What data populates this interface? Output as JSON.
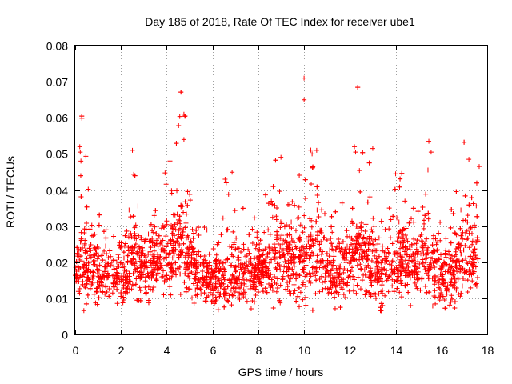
{
  "chart_data": {
    "type": "scatter",
    "title": "Day 185 of 2018, Rate Of TEC Index for receiver ube1",
    "xlabel": "GPS time / hours",
    "ylabel": "ROTI / TECUs",
    "xlim": [
      0,
      18
    ],
    "ylim": [
      0,
      0.08
    ],
    "xticks": [
      "0",
      "2",
      "4",
      "6",
      "8",
      "10",
      "12",
      "14",
      "16",
      "18"
    ],
    "yticks": [
      "0",
      "0.01",
      "0.02",
      "0.03",
      "0.04",
      "0.05",
      "0.06",
      "0.07",
      "0.08"
    ],
    "grid": true,
    "marker": "+",
    "color": "#ff0000",
    "envelope": [
      {
        "x": 0.0,
        "base": 0.018,
        "spread": 0.007,
        "burst": 0.01
      },
      {
        "x": 0.3,
        "base": 0.02,
        "spread": 0.008,
        "burst": 0.03
      },
      {
        "x": 0.7,
        "base": 0.018,
        "spread": 0.008,
        "burst": 0.022
      },
      {
        "x": 1.2,
        "base": 0.016,
        "spread": 0.007,
        "burst": 0.012
      },
      {
        "x": 1.7,
        "base": 0.017,
        "spread": 0.006,
        "burst": 0.01
      },
      {
        "x": 2.1,
        "base": 0.016,
        "spread": 0.008,
        "burst": 0.016
      },
      {
        "x": 2.5,
        "base": 0.02,
        "spread": 0.009,
        "burst": 0.022
      },
      {
        "x": 3.0,
        "base": 0.018,
        "spread": 0.007,
        "burst": 0.01
      },
      {
        "x": 3.5,
        "base": 0.02,
        "spread": 0.008,
        "burst": 0.016
      },
      {
        "x": 4.0,
        "base": 0.022,
        "spread": 0.009,
        "burst": 0.02
      },
      {
        "x": 4.5,
        "base": 0.026,
        "spread": 0.01,
        "burst": 0.024
      },
      {
        "x": 4.8,
        "base": 0.024,
        "spread": 0.01,
        "burst": 0.03
      },
      {
        "x": 5.2,
        "base": 0.018,
        "spread": 0.007,
        "burst": 0.012
      },
      {
        "x": 5.8,
        "base": 0.015,
        "spread": 0.006,
        "burst": 0.008
      },
      {
        "x": 6.3,
        "base": 0.014,
        "spread": 0.006,
        "burst": 0.01
      },
      {
        "x": 6.7,
        "base": 0.016,
        "spread": 0.007,
        "burst": 0.024
      },
      {
        "x": 7.2,
        "base": 0.015,
        "spread": 0.006,
        "burst": 0.01
      },
      {
        "x": 7.8,
        "base": 0.017,
        "spread": 0.007,
        "burst": 0.012
      },
      {
        "x": 8.3,
        "base": 0.018,
        "spread": 0.008,
        "burst": 0.016
      },
      {
        "x": 8.8,
        "base": 0.022,
        "spread": 0.01,
        "burst": 0.022
      },
      {
        "x": 9.3,
        "base": 0.02,
        "spread": 0.009,
        "burst": 0.018
      },
      {
        "x": 9.8,
        "base": 0.02,
        "spread": 0.009,
        "burst": 0.022
      },
      {
        "x": 10.3,
        "base": 0.022,
        "spread": 0.01,
        "burst": 0.026
      },
      {
        "x": 10.8,
        "base": 0.02,
        "spread": 0.009,
        "burst": 0.018
      },
      {
        "x": 11.3,
        "base": 0.017,
        "spread": 0.008,
        "burst": 0.012
      },
      {
        "x": 11.8,
        "base": 0.018,
        "spread": 0.008,
        "burst": 0.012
      },
      {
        "x": 12.3,
        "base": 0.022,
        "spread": 0.01,
        "burst": 0.028
      },
      {
        "x": 12.8,
        "base": 0.02,
        "spread": 0.009,
        "burst": 0.02
      },
      {
        "x": 13.3,
        "base": 0.016,
        "spread": 0.007,
        "burst": 0.01
      },
      {
        "x": 13.8,
        "base": 0.02,
        "spread": 0.009,
        "burst": 0.02
      },
      {
        "x": 14.3,
        "base": 0.021,
        "spread": 0.009,
        "burst": 0.018
      },
      {
        "x": 14.8,
        "base": 0.019,
        "spread": 0.009,
        "burst": 0.016
      },
      {
        "x": 15.3,
        "base": 0.022,
        "spread": 0.01,
        "burst": 0.026
      },
      {
        "x": 15.8,
        "base": 0.017,
        "spread": 0.008,
        "burst": 0.014
      },
      {
        "x": 16.3,
        "base": 0.016,
        "spread": 0.008,
        "burst": 0.012
      },
      {
        "x": 16.8,
        "base": 0.02,
        "spread": 0.009,
        "burst": 0.024
      },
      {
        "x": 17.2,
        "base": 0.022,
        "spread": 0.009,
        "burst": 0.02
      },
      {
        "x": 17.5,
        "base": 0.02,
        "spread": 0.008,
        "burst": 0.018
      }
    ],
    "x_end": 17.6,
    "n_points": 3200,
    "outliers": [
      {
        "x": 10.0,
        "y": 0.071
      },
      {
        "x": 10.0,
        "y": 0.065
      },
      {
        "x": 4.75,
        "y": 0.061
      },
      {
        "x": 4.8,
        "y": 0.0605
      },
      {
        "x": 4.75,
        "y": 0.054
      },
      {
        "x": 15.45,
        "y": 0.0535
      },
      {
        "x": 0.2,
        "y": 0.052
      },
      {
        "x": 0.22,
        "y": 0.0505
      },
      {
        "x": 2.5,
        "y": 0.051
      },
      {
        "x": 10.55,
        "y": 0.051
      },
      {
        "x": 10.35,
        "y": 0.05
      },
      {
        "x": 12.2,
        "y": 0.052
      },
      {
        "x": 12.25,
        "y": 0.0505
      },
      {
        "x": 13.0,
        "y": 0.0515
      },
      {
        "x": 15.55,
        "y": 0.0505
      },
      {
        "x": 17.2,
        "y": 0.0485
      },
      {
        "x": 17.65,
        "y": 0.0465
      },
      {
        "x": 0.25,
        "y": 0.048
      },
      {
        "x": 6.55,
        "y": 0.043
      },
      {
        "x": 6.6,
        "y": 0.042
      },
      {
        "x": 14.0,
        "y": 0.0445
      }
    ]
  }
}
